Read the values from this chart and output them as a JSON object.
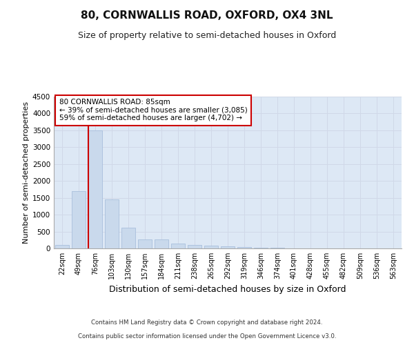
{
  "title1": "80, CORNWALLIS ROAD, OXFORD, OX4 3NL",
  "title2": "Size of property relative to semi-detached houses in Oxford",
  "xlabel": "Distribution of semi-detached houses by size in Oxford",
  "ylabel": "Number of semi-detached properties",
  "categories": [
    "22sqm",
    "49sqm",
    "76sqm",
    "103sqm",
    "130sqm",
    "157sqm",
    "184sqm",
    "211sqm",
    "238sqm",
    "265sqm",
    "292sqm",
    "319sqm",
    "346sqm",
    "374sqm",
    "401sqm",
    "428sqm",
    "455sqm",
    "482sqm",
    "509sqm",
    "536sqm",
    "563sqm"
  ],
  "values": [
    100,
    1700,
    3500,
    1450,
    620,
    270,
    260,
    140,
    100,
    75,
    65,
    50,
    30,
    20,
    10,
    8,
    5,
    5,
    3,
    2,
    2
  ],
  "bar_color": "#c9d9ec",
  "bar_edgecolor": "#a0b8d8",
  "grid_color": "#d0d8e8",
  "background_color": "#dde8f5",
  "vline_color": "#cc0000",
  "annotation_box_color": "#cc0000",
  "ylim": [
    0,
    4500
  ],
  "yticks": [
    0,
    500,
    1000,
    1500,
    2000,
    2500,
    3000,
    3500,
    4000,
    4500
  ],
  "footnote1": "Contains HM Land Registry data © Crown copyright and database right 2024.",
  "footnote2": "Contains public sector information licensed under the Open Government Licence v3.0.",
  "title1_fontsize": 11,
  "title2_fontsize": 9,
  "xlabel_fontsize": 9,
  "ylabel_fontsize": 8,
  "annotation_text": "80 CORNWALLIS ROAD: 85sqm\n← 39% of semi-detached houses are smaller (3,085)\n59% of semi-detached houses are larger (4,702) →",
  "vline_xindex": 1.6
}
